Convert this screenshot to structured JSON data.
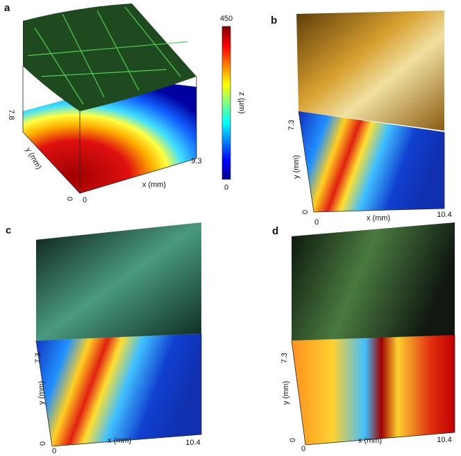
{
  "colorbar": {
    "max": 450,
    "min": 0,
    "label": "z (µm)"
  },
  "panels": [
    {
      "label": "a",
      "y_max": 7.8,
      "y_label": "y (mm)",
      "y_origin": 0,
      "x_origin": 0,
      "x_label": "x (mm)",
      "x_max": 9.3
    },
    {
      "label": "b",
      "y_max": 7.3,
      "y_label": "y (mm)",
      "y_origin": 0,
      "x_origin": 0,
      "x_label": "x (mm)",
      "x_max": 10.4
    },
    {
      "label": "c",
      "y_max": 7.3,
      "y_label": "y (mm)",
      "y_origin": 0,
      "x_origin": 0,
      "x_label": "x (mm)",
      "x_max": 10.4
    },
    {
      "label": "d",
      "y_max": 7.3,
      "y_label": "y (mm)",
      "y_origin": 0,
      "x_origin": 0,
      "x_label": "x (mm)",
      "x_max": 10.4
    }
  ]
}
